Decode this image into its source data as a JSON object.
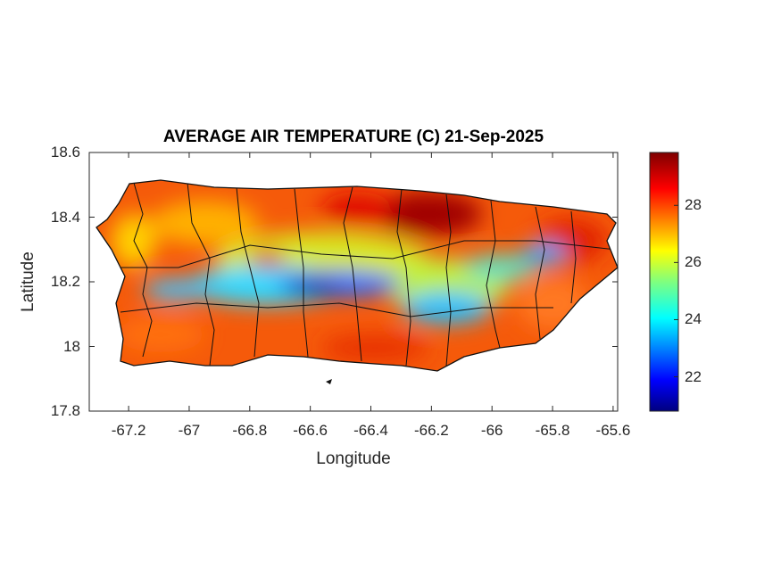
{
  "chart_data": {
    "type": "heatmap",
    "title": "AVERAGE AIR TEMPERATURE (C) 21-Sep-2025",
    "xlabel": "Longitude",
    "ylabel": "Latitude",
    "xlim": [
      -67.33,
      -65.585
    ],
    "ylim": [
      17.8,
      18.6
    ],
    "xticks": [
      "-67.2",
      "-67",
      "-66.8",
      "-66.6",
      "-66.4",
      "-66.2",
      "-66",
      "-65.8",
      "-65.6"
    ],
    "xtick_values": [
      -67.2,
      -67,
      -66.8,
      -66.6,
      -66.4,
      -66.2,
      -66,
      -65.8,
      -65.6
    ],
    "yticks": [
      "18.6",
      "18.4",
      "18.2",
      "18",
      "17.8"
    ],
    "ytick_values": [
      18.6,
      18.4,
      18.2,
      18.0,
      17.8
    ],
    "colorbar": {
      "colormap": "jet",
      "range": [
        20.8,
        29.85
      ],
      "ticks": [
        "28",
        "26",
        "24",
        "22"
      ],
      "tick_values": [
        28,
        26,
        24,
        22
      ]
    },
    "region": "Puerto Rico",
    "pattern": "cool (21-24 C) along central mountain range, hot (28-29.8 C) along north coast and coasts"
  }
}
